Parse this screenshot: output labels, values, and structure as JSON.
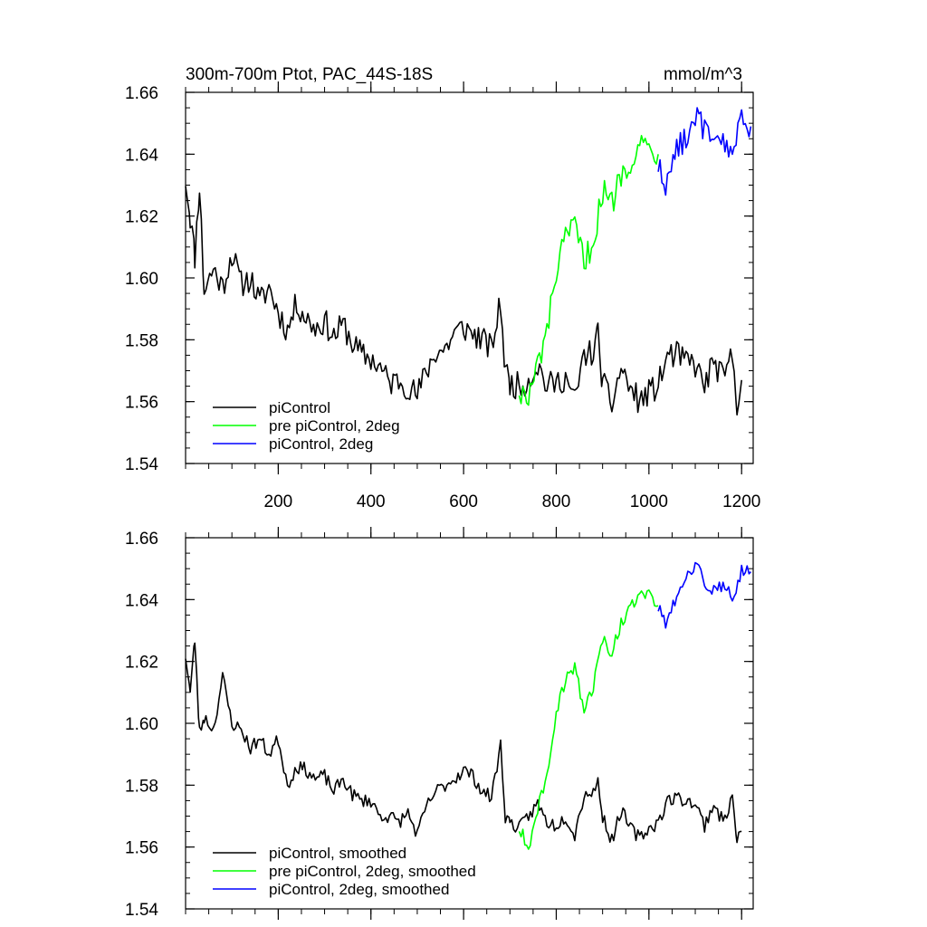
{
  "chart_data": [
    {
      "type": "line",
      "title": "300m-700m Ptot, PAC_44S-18S",
      "units": "mmol/m^3",
      "xlim": [
        0,
        1225
      ],
      "ylim": [
        1.54,
        1.66
      ],
      "x_ticks": [
        200,
        400,
        600,
        800,
        1000,
        1200
      ],
      "x_tick_labels": [
        "200",
        "400",
        "600",
        "800",
        "1000",
        "1200"
      ],
      "y_ticks": [
        1.54,
        1.56,
        1.58,
        1.6,
        1.62,
        1.64,
        1.66
      ],
      "y_tick_labels": [
        "1.54",
        "1.56",
        "1.58",
        "1.60",
        "1.62",
        "1.64",
        "1.66"
      ],
      "legend_position": "bottom-left",
      "series": [
        {
          "name": "piControl",
          "color": "#000000",
          "x": [
            0,
            10,
            20,
            30,
            40,
            60,
            80,
            100,
            120,
            140,
            160,
            180,
            200,
            220,
            240,
            260,
            280,
            300,
            320,
            340,
            360,
            380,
            400,
            420,
            440,
            460,
            480,
            500,
            520,
            540,
            560,
            580,
            600,
            620,
            640,
            660,
            680,
            690,
            700,
            720,
            740,
            760,
            780,
            800,
            820,
            840,
            860,
            880,
            890,
            900,
            920,
            940,
            960,
            980,
            1000,
            1020,
            1040,
            1060,
            1080,
            1100,
            1120,
            1140,
            1160,
            1180,
            1190,
            1200
          ],
          "y": [
            1.632,
            1.62,
            1.607,
            1.63,
            1.596,
            1.603,
            1.597,
            1.608,
            1.598,
            1.6,
            1.592,
            1.597,
            1.589,
            1.583,
            1.592,
            1.587,
            1.584,
            1.586,
            1.581,
            1.585,
            1.579,
            1.575,
            1.574,
            1.571,
            1.566,
            1.567,
            1.565,
            1.562,
            1.57,
            1.576,
            1.577,
            1.582,
            1.584,
            1.582,
            1.58,
            1.577,
            1.592,
            1.57,
            1.566,
            1.565,
            1.567,
            1.572,
            1.565,
            1.566,
            1.568,
            1.56,
            1.575,
            1.576,
            1.582,
            1.566,
            1.559,
            1.571,
            1.564,
            1.56,
            1.563,
            1.565,
            1.575,
            1.575,
            1.573,
            1.572,
            1.565,
            1.573,
            1.567,
            1.575,
            1.56,
            1.567
          ]
        },
        {
          "name": "pre piControl, 2deg",
          "color": "#00ff00",
          "x": [
            720,
            740,
            760,
            780,
            800,
            820,
            840,
            860,
            880,
            900,
            920,
            940,
            960,
            980,
            1000,
            1020
          ],
          "y": [
            1.564,
            1.56,
            1.572,
            1.582,
            1.602,
            1.612,
            1.617,
            1.605,
            1.612,
            1.628,
            1.624,
            1.634,
            1.638,
            1.644,
            1.642,
            1.64
          ]
        },
        {
          "name": "piControl, 2deg",
          "color": "#0000ff",
          "x": [
            1020,
            1040,
            1060,
            1080,
            1100,
            1120,
            1140,
            1160,
            1180,
            1200,
            1220
          ],
          "y": [
            1.636,
            1.63,
            1.642,
            1.646,
            1.652,
            1.648,
            1.642,
            1.644,
            1.641,
            1.65,
            1.649
          ]
        }
      ]
    },
    {
      "type": "line",
      "xlim": [
        0,
        1225
      ],
      "ylim": [
        1.54,
        1.66
      ],
      "x_ticks": [
        200,
        400,
        600,
        800,
        1000,
        1200
      ],
      "y_ticks": [
        1.54,
        1.56,
        1.58,
        1.6,
        1.62,
        1.64,
        1.66
      ],
      "y_tick_labels": [
        "1.54",
        "1.56",
        "1.58",
        "1.60",
        "1.62",
        "1.64",
        "1.66"
      ],
      "legend_position": "bottom-left",
      "series": [
        {
          "name": "piControl, smoothed",
          "color": "#000000",
          "x": [
            0,
            10,
            20,
            30,
            40,
            60,
            80,
            100,
            120,
            140,
            160,
            180,
            200,
            220,
            240,
            260,
            280,
            300,
            320,
            340,
            360,
            380,
            400,
            420,
            440,
            460,
            480,
            500,
            520,
            540,
            560,
            580,
            600,
            620,
            640,
            660,
            680,
            690,
            700,
            720,
            740,
            760,
            780,
            800,
            820,
            840,
            860,
            880,
            890,
            900,
            920,
            940,
            960,
            980,
            1000,
            1020,
            1040,
            1060,
            1080,
            1100,
            1120,
            1140,
            1160,
            1180,
            1190,
            1200
          ],
          "y": [
            1.622,
            1.61,
            1.627,
            1.597,
            1.602,
            1.598,
            1.615,
            1.6,
            1.598,
            1.592,
            1.595,
            1.59,
            1.595,
            1.58,
            1.586,
            1.585,
            1.582,
            1.583,
            1.578,
            1.582,
            1.577,
            1.575,
            1.575,
            1.57,
            1.57,
            1.568,
            1.571,
            1.564,
            1.573,
            1.578,
            1.58,
            1.582,
            1.585,
            1.583,
            1.578,
            1.576,
            1.593,
            1.57,
            1.568,
            1.566,
            1.57,
            1.574,
            1.568,
            1.567,
            1.57,
            1.564,
            1.577,
            1.578,
            1.581,
            1.57,
            1.562,
            1.572,
            1.566,
            1.563,
            1.566,
            1.568,
            1.575,
            1.576,
            1.575,
            1.574,
            1.567,
            1.574,
            1.568,
            1.576,
            1.562,
            1.565
          ]
        },
        {
          "name": "pre piControl, 2deg, smoothed",
          "color": "#00ff00",
          "x": [
            720,
            740,
            760,
            780,
            800,
            820,
            840,
            860,
            880,
            900,
            920,
            940,
            960,
            980,
            1000,
            1020
          ],
          "y": [
            1.566,
            1.56,
            1.572,
            1.584,
            1.604,
            1.614,
            1.618,
            1.604,
            1.612,
            1.628,
            1.623,
            1.632,
            1.637,
            1.643,
            1.642,
            1.638
          ]
        },
        {
          "name": "piControl, 2deg, smoothed",
          "color": "#0000ff",
          "x": [
            1020,
            1040,
            1060,
            1080,
            1100,
            1120,
            1140,
            1160,
            1180,
            1200,
            1220
          ],
          "y": [
            1.637,
            1.632,
            1.642,
            1.646,
            1.652,
            1.646,
            1.643,
            1.644,
            1.641,
            1.649,
            1.649
          ]
        }
      ]
    }
  ]
}
